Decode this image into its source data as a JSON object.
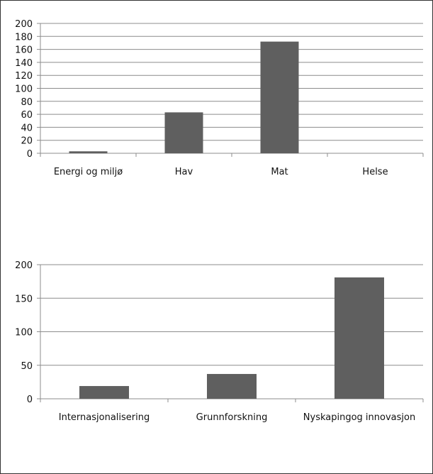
{
  "chart_data": [
    {
      "type": "bar",
      "title": "",
      "xlabel": "",
      "ylabel": "",
      "categories": [
        "Energi og miljø",
        "Hav",
        "Mat",
        "Helse"
      ],
      "values": [
        3,
        63,
        172,
        0
      ],
      "ylim": [
        0,
        200
      ],
      "yticks": [
        0,
        20,
        40,
        60,
        80,
        100,
        120,
        140,
        160,
        180,
        200
      ],
      "grid": true,
      "bar_color": "#5f5f5f"
    },
    {
      "type": "bar",
      "title": "",
      "xlabel": "",
      "ylabel": "",
      "categories": [
        "Internasjonalisering",
        "Grunnforskning",
        "Nyskapingog innovasjon"
      ],
      "values": [
        19,
        37,
        181
      ],
      "ylim": [
        0,
        200
      ],
      "yticks": [
        0,
        50,
        100,
        150,
        200
      ],
      "grid": true,
      "bar_color": "#5f5f5f"
    }
  ]
}
